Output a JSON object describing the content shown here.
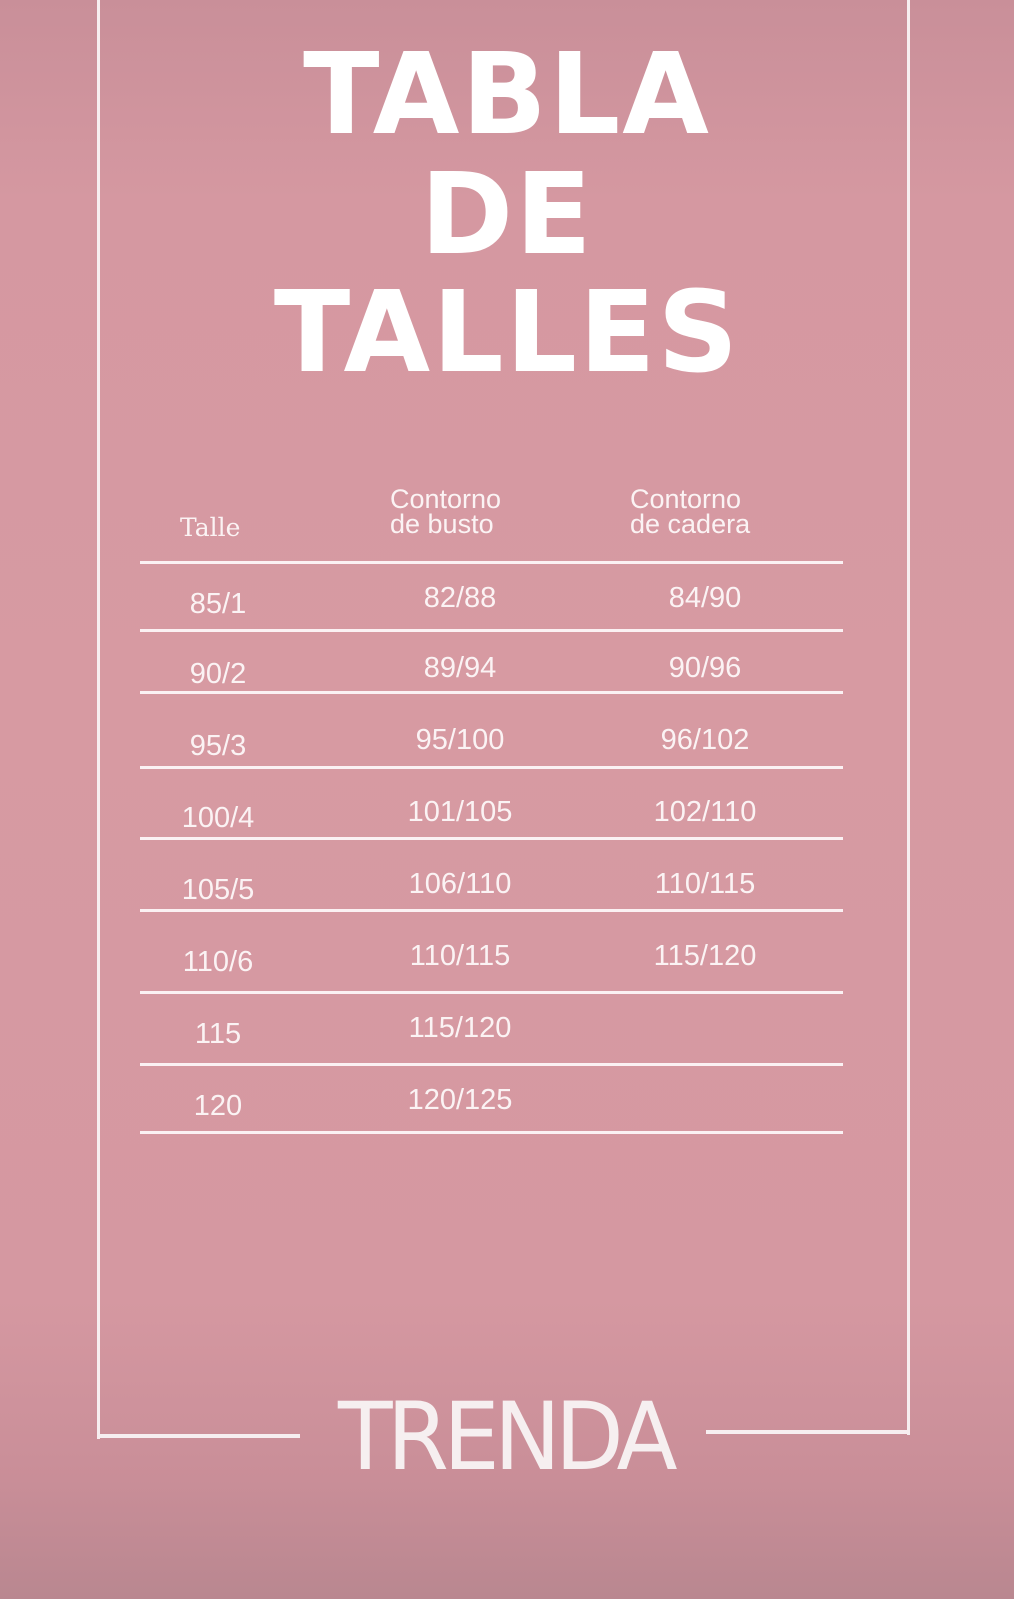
{
  "title": {
    "line1": "TABLA",
    "line2": "DE",
    "line3": "TALLES"
  },
  "table": {
    "headers": [
      "Talle",
      "Contorno de busto",
      "Contorno de cadera"
    ],
    "header_lines": {
      "busto": [
        "Contorno",
        "de busto"
      ],
      "cadera": [
        "Contorno",
        "de cadera"
      ]
    },
    "rows": [
      [
        "85/1",
        "82/88",
        "84/90"
      ],
      [
        "90/2",
        "89/94",
        "90/96"
      ],
      [
        "95/3",
        "95/100",
        "96/102"
      ],
      [
        "100/4",
        "101/105",
        "102/110"
      ],
      [
        "105/5",
        "106/110",
        "110/115"
      ],
      [
        "110/6",
        "110/115",
        "115/120"
      ],
      [
        "115",
        "115/120",
        ""
      ],
      [
        "120",
        "120/125",
        ""
      ]
    ]
  },
  "brand": {
    "logo_text": "TRENDA"
  },
  "colors": {
    "background": "#d79aa2",
    "text": "#ffffff"
  }
}
